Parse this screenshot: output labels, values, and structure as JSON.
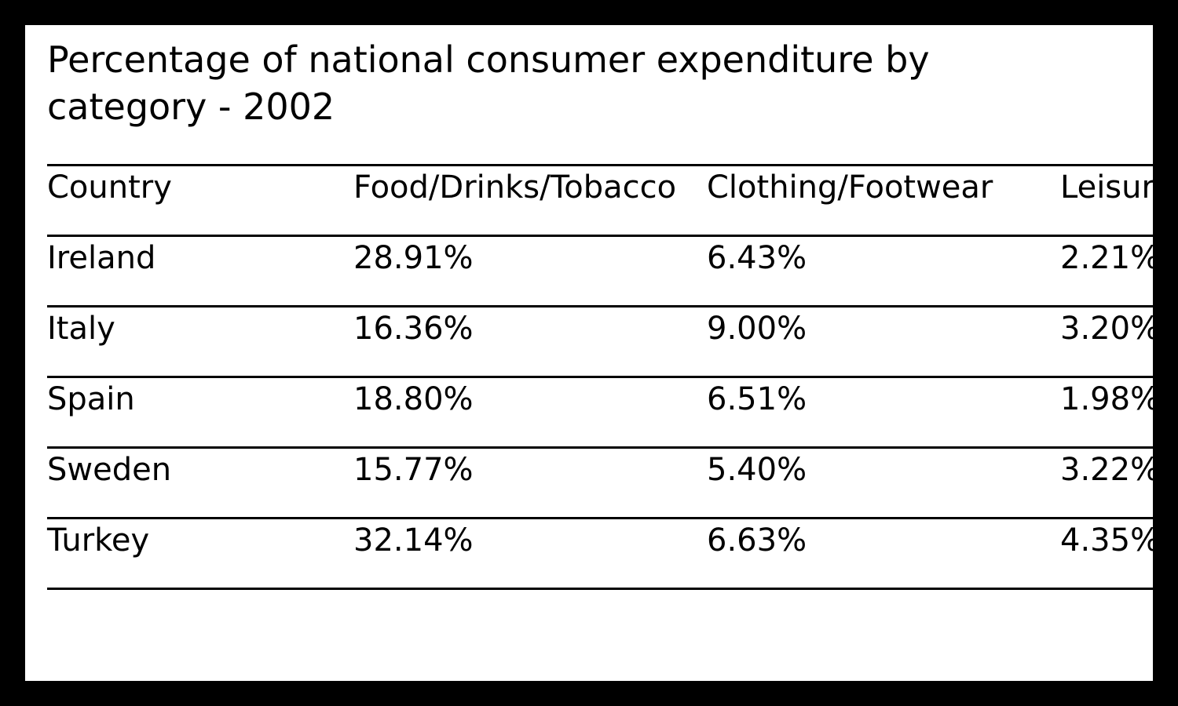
{
  "chart_data": {
    "type": "table",
    "title": "Percentage of national consumer expenditure by category - 2002",
    "columns": [
      "Country",
      "Food/Drinks/Tobacco",
      "Clothing/Footwear",
      "Leisure/Education"
    ],
    "rows": [
      [
        "Ireland",
        "28.91%",
        "6.43%",
        "2.21%"
      ],
      [
        "Italy",
        "16.36%",
        "9.00%",
        "3.20%"
      ],
      [
        "Spain",
        "18.80%",
        "6.51%",
        "1.98%"
      ],
      [
        "Sweden",
        "15.77%",
        "5.40%",
        "3.22%"
      ],
      [
        "Turkey",
        "32.14%",
        "6.63%",
        "4.35%"
      ]
    ]
  },
  "colors": {
    "frame": "#000000",
    "background": "#ffffff",
    "text": "#000000",
    "rule": "#000000"
  }
}
